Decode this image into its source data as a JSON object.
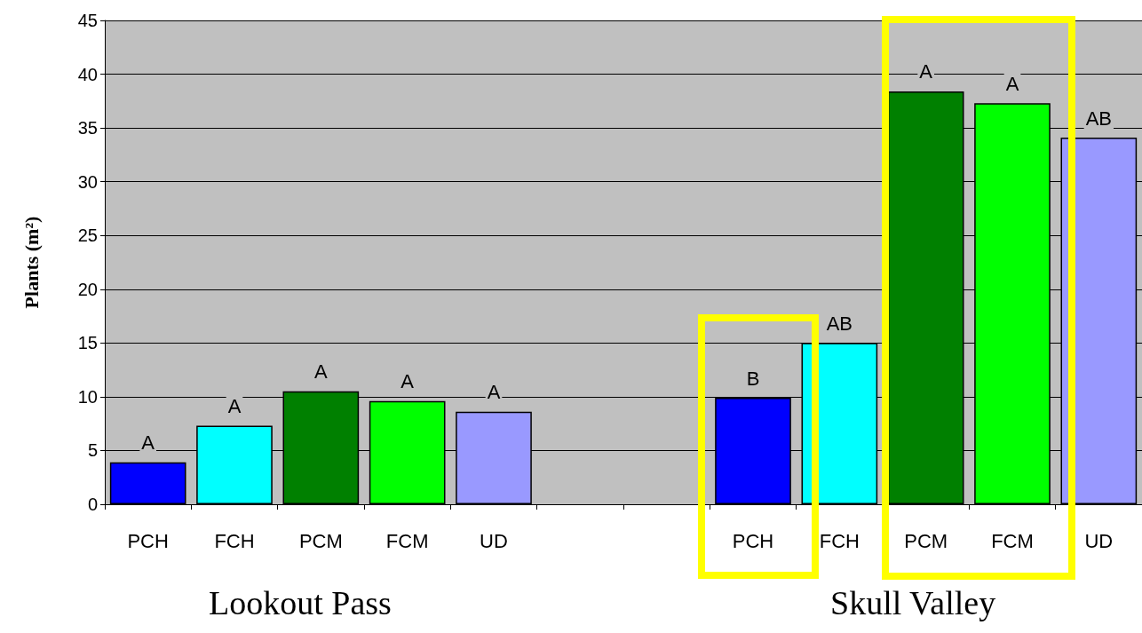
{
  "chart_data": {
    "type": "bar",
    "ylabel": "Plants (m²)",
    "categories": [
      "PCH",
      "FCH",
      "PCM",
      "FCM",
      "UD",
      null,
      null,
      "PCH",
      "FCH",
      "PCM",
      "FCM",
      "UD"
    ],
    "values": [
      3.9,
      7.3,
      10.5,
      9.6,
      8.6,
      null,
      null,
      9.9,
      15.0,
      38.4,
      37.3,
      34.1
    ],
    "colors": [
      "#0000ff",
      "#00ffff",
      "#008000",
      "#00ff00",
      "#9999ff",
      null,
      null,
      "#0000ff",
      "#00ffff",
      "#008000",
      "#00ff00",
      "#9999ff"
    ],
    "value_labels": [
      "A",
      "A",
      "A",
      "A",
      "A",
      null,
      null,
      "B",
      "AB",
      "A",
      "A",
      "AB"
    ],
    "annotations": [
      "Lookout Pass",
      "Skull Valley"
    ],
    "ylim": [
      0,
      45
    ],
    "yticks": [
      0,
      5,
      10,
      15,
      20,
      25,
      30,
      35,
      40,
      45
    ],
    "grid": "y"
  }
}
